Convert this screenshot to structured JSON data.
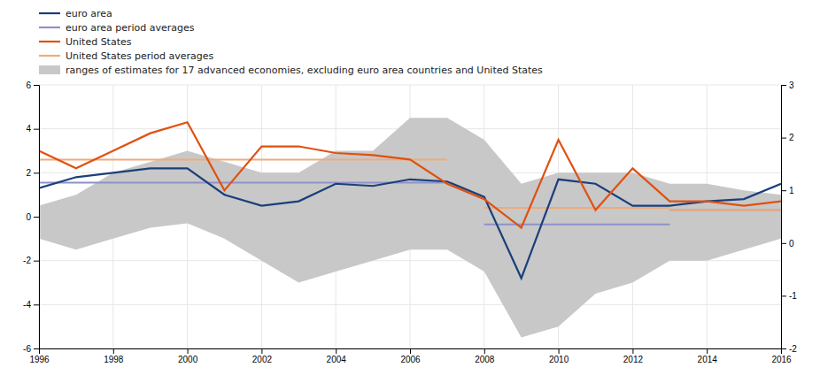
{
  "chart_data": {
    "type": "line",
    "x": [
      1996,
      1997,
      1998,
      1999,
      2000,
      2001,
      2002,
      2003,
      2004,
      2005,
      2006,
      2007,
      2008,
      2009,
      2010,
      2011,
      2012,
      2013,
      2014,
      2015,
      2016
    ],
    "series": [
      {
        "name": "euro area",
        "color": "#1a3f7a",
        "values": [
          1.3,
          1.8,
          2.0,
          2.2,
          2.2,
          1.0,
          0.5,
          0.7,
          1.5,
          1.4,
          1.7,
          1.6,
          0.9,
          -2.8,
          1.7,
          1.5,
          0.5,
          0.5,
          0.7,
          0.8,
          1.5
        ]
      },
      {
        "name": "euro area period averages",
        "color": "#9090cc",
        "x": [
          1996,
          2007,
          null,
          2008,
          2013,
          null,
          2013,
          2016
        ],
        "values": [
          1.55,
          1.55,
          null,
          -0.35,
          -0.35,
          null,
          0.3,
          0.3
        ]
      },
      {
        "name": "United States",
        "color": "#e05010",
        "values": [
          3.0,
          2.2,
          3.0,
          3.8,
          4.3,
          1.2,
          3.2,
          3.2,
          2.9,
          2.8,
          2.6,
          1.5,
          0.8,
          -0.5,
          3.5,
          0.3,
          2.2,
          0.7,
          0.7,
          0.5,
          0.7
        ]
      },
      {
        "name": "United States period averages",
        "color": "#f0aa78",
        "x": [
          1996,
          2007,
          null,
          2008,
          2013,
          null,
          2013,
          2016
        ],
        "values": [
          2.6,
          2.6,
          null,
          0.4,
          0.4,
          null,
          0.3,
          0.3
        ]
      },
      {
        "name": "ranges of estimates for 17 advanced economies, excluding euro area countries and United States",
        "type": "area",
        "color": "#c8c8c8",
        "lower": [
          -1.0,
          -1.5,
          -1.0,
          -0.5,
          -0.3,
          -1.0,
          -2.0,
          -3.0,
          -2.5,
          -2.0,
          -1.5,
          -1.5,
          -2.5,
          -5.5,
          -5.0,
          -3.5,
          -3.0,
          -2.0,
          -2.0,
          -1.5,
          -1.0
        ],
        "values": [
          0.5,
          1.0,
          2.0,
          2.5,
          3.0,
          2.5,
          2.0,
          2.0,
          3.0,
          3.0,
          4.5,
          4.5,
          3.5,
          1.5,
          2.0,
          2.0,
          2.0,
          1.5,
          1.5,
          1.2,
          1.0
        ]
      }
    ],
    "xlim": [
      1996,
      2016
    ],
    "xticks": [
      1996,
      1998,
      2000,
      2002,
      2004,
      2006,
      2008,
      2010,
      2012,
      2014,
      2016
    ],
    "ylim": [
      -6,
      6
    ],
    "yticks": [
      -6,
      -4,
      -2,
      0,
      2,
      4,
      6
    ],
    "y2lim": [
      -2,
      3
    ],
    "y2ticks": [
      -2,
      -1,
      0,
      1,
      2,
      3
    ],
    "grid": true,
    "legend": "upper-left"
  }
}
